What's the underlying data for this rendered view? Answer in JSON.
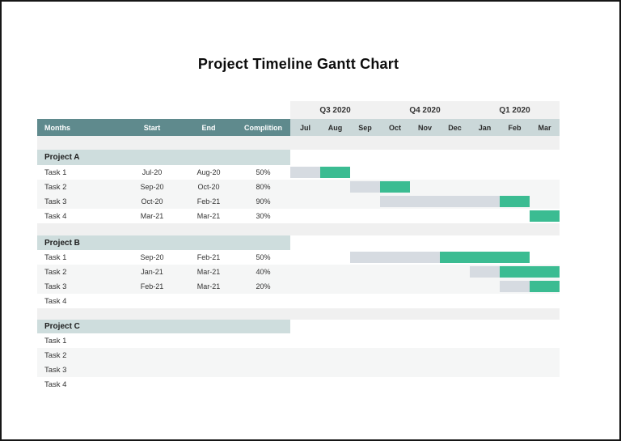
{
  "chart_data": {
    "type": "bar",
    "subtype": "gantt",
    "title": "Project Timeline Gantt Chart",
    "quarters": [
      "Q3 2020",
      "Q4 2020",
      "Q1 2020"
    ],
    "months": [
      "Jul",
      "Aug",
      "Sep",
      "Oct",
      "Nov",
      "Dec",
      "Jan",
      "Feb",
      "Mar"
    ],
    "column_headers": {
      "months": "Months",
      "start": "Start",
      "end": "End",
      "completion": "Complition"
    },
    "colors": {
      "header_teal": "#5f8a8d",
      "band_teal": "#cedddd",
      "month_band": "#cbd8d9",
      "bar_gray": "#d6dbe1",
      "bar_green": "#3bbc92",
      "quarter_band": "#f1f1f1"
    },
    "projects": [
      {
        "name": "Project A",
        "tasks": [
          {
            "label": "Task 1",
            "start": "Jul-20",
            "end": "Aug-20",
            "completion": "50%",
            "bar": {
              "gray": [
                0,
                1
              ],
              "green": [
                1,
                1
              ]
            }
          },
          {
            "label": "Task 2",
            "start": "Sep-20",
            "end": "Oct-20",
            "completion": "80%",
            "bar": {
              "gray": [
                2,
                1
              ],
              "green": [
                3,
                1
              ]
            }
          },
          {
            "label": "Task 3",
            "start": "Oct-20",
            "end": "Feb-21",
            "completion": "90%",
            "bar": {
              "gray": [
                3,
                4
              ],
              "green": [
                7,
                1
              ]
            }
          },
          {
            "label": "Task 4",
            "start": "Mar-21",
            "end": "Mar-21",
            "completion": "30%",
            "bar": {
              "green": [
                8,
                1
              ]
            }
          }
        ]
      },
      {
        "name": "Project B",
        "tasks": [
          {
            "label": "Task 1",
            "start": "Sep-20",
            "end": "Feb-21",
            "completion": "50%",
            "bar": {
              "gray": [
                2,
                3
              ],
              "green": [
                5,
                3
              ]
            }
          },
          {
            "label": "Task 2",
            "start": "Jan-21",
            "end": "Mar-21",
            "completion": "40%",
            "bar": {
              "gray": [
                6,
                1
              ],
              "green": [
                7,
                2
              ]
            }
          },
          {
            "label": "Task 3",
            "start": "Feb-21",
            "end": "Mar-21",
            "completion": "20%",
            "bar": {
              "gray": [
                7,
                1
              ],
              "green": [
                8,
                1
              ]
            }
          },
          {
            "label": "Task 4",
            "start": "",
            "end": "",
            "completion": "",
            "bar": null
          }
        ]
      },
      {
        "name": "Project C",
        "tasks": [
          {
            "label": "Task 1",
            "start": "",
            "end": "",
            "completion": "",
            "bar": null
          },
          {
            "label": "Task 2",
            "start": "",
            "end": "",
            "completion": "",
            "bar": null
          },
          {
            "label": "Task 3",
            "start": "",
            "end": "",
            "completion": "",
            "bar": null
          },
          {
            "label": "Task 4",
            "start": "",
            "end": "",
            "completion": "",
            "bar": null
          }
        ]
      }
    ]
  }
}
